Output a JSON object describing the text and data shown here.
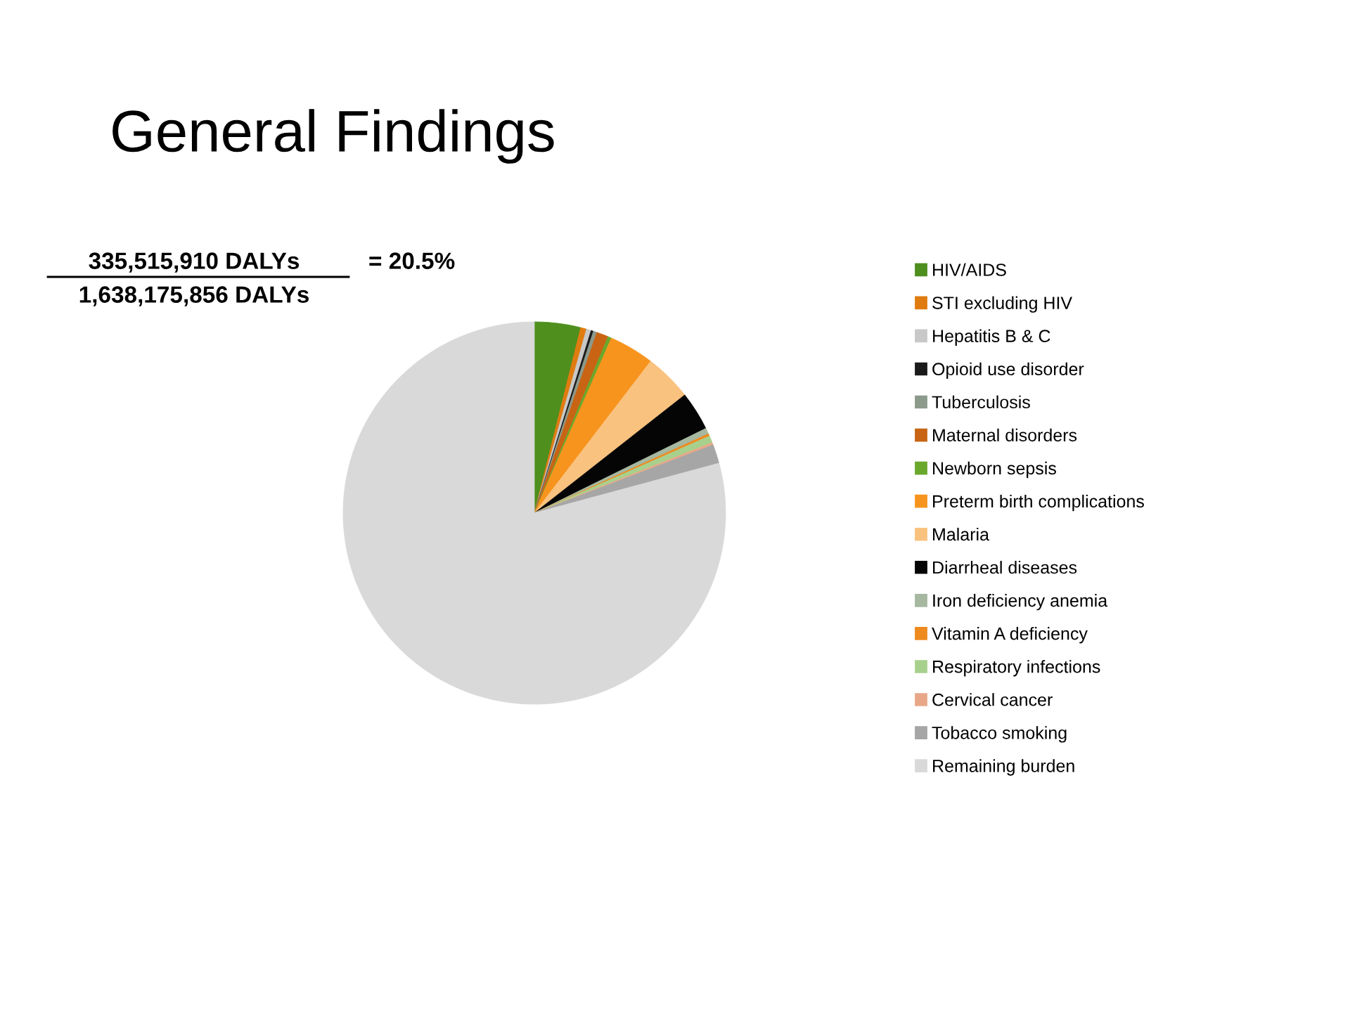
{
  "chart_data": {
    "type": "pie",
    "title": "General Findings",
    "annotations": [
      "335,515,910 DALYs",
      "1,638,175,856 DALYs",
      "= 20.5%"
    ],
    "categories": [
      "HIV/AIDS",
      "STI excluding HIV",
      "Hepatitis B & C",
      "Opioid use disorder",
      "Tuberculosis",
      "Maternal disorders",
      "Newborn sepsis",
      "Preterm birth complications",
      "Malaria",
      "Diarrheal diseases",
      "Iron deficiency anemia",
      "Vitamin A deficiency",
      "Respiratory infections",
      "Cervical cancer",
      "Tobacco smoking",
      "Remaining burden"
    ],
    "values": [
      3.9,
      0.5,
      0.4,
      0.2,
      0.3,
      1.0,
      0.3,
      3.8,
      4.0,
      3.3,
      0.5,
      0.2,
      0.6,
      0.2,
      1.6,
      79.2
    ],
    "colors": [
      "#4e8f1e",
      "#e07b10",
      "#c8c8c8",
      "#1a1a1a",
      "#8c9a8c",
      "#c86414",
      "#6aa82c",
      "#f7941d",
      "#fac27f",
      "#050505",
      "#a6b8a0",
      "#ee8a1e",
      "#a8d08d",
      "#e8a888",
      "#a6a6a6",
      "#d9d9d9"
    ],
    "legend": "right"
  }
}
